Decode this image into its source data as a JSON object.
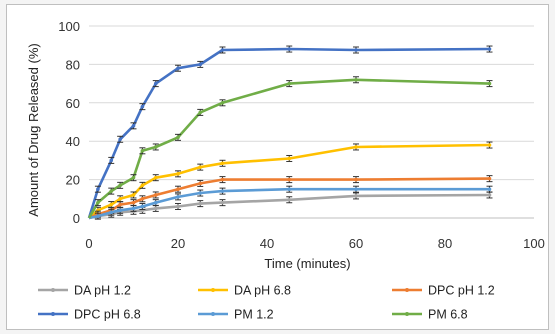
{
  "chart_data": {
    "type": "line",
    "title": "",
    "xlabel": "Time (minutes)",
    "ylabel": "Amount of Drug Released (%)",
    "xlim": [
      0,
      100
    ],
    "ylim": [
      0,
      100
    ],
    "xticks": [
      0,
      20,
      40,
      60,
      80,
      100
    ],
    "yticks": [
      0,
      20,
      40,
      60,
      80,
      100
    ],
    "grid": "horizontal",
    "legend_position": "bottom",
    "series": [
      {
        "name": "DA pH 1.2",
        "color": "#a5a5a5",
        "x": [
          0,
          2,
          5,
          7,
          10,
          12,
          15,
          20,
          25,
          30,
          45,
          60,
          90
        ],
        "y": [
          0,
          1,
          2,
          3,
          3.5,
          4,
          5,
          6,
          7.5,
          8,
          9.5,
          11.5,
          12
        ]
      },
      {
        "name": "DA pH 6.8",
        "color": "#ffc000",
        "x": [
          0,
          2,
          5,
          7,
          10,
          12,
          15,
          20,
          25,
          30,
          45,
          60,
          90
        ],
        "y": [
          0,
          4,
          7,
          10,
          12,
          17,
          21,
          23,
          26.5,
          28.5,
          31,
          37,
          38
        ]
      },
      {
        "name": "DPC pH 1.2",
        "color": "#ed7d31",
        "x": [
          0,
          2,
          5,
          7,
          10,
          12,
          15,
          20,
          25,
          30,
          45,
          60,
          90
        ],
        "y": [
          0,
          2,
          4,
          7,
          8,
          10,
          12,
          15,
          18,
          20,
          20,
          20,
          20.5
        ]
      },
      {
        "name": "DPC pH 6.8",
        "color": "#4472c4",
        "x": [
          0,
          2,
          5,
          7,
          10,
          12,
          15,
          20,
          25,
          30,
          45,
          60,
          90
        ],
        "y": [
          0,
          15,
          30,
          41,
          48,
          58,
          70,
          78,
          80,
          87.5,
          88,
          87.5,
          88
        ]
      },
      {
        "name": "PM 1.2",
        "color": "#5b9bd5",
        "x": [
          0,
          2,
          5,
          7,
          10,
          12,
          15,
          20,
          25,
          30,
          45,
          60,
          90
        ],
        "y": [
          0,
          1,
          3,
          4,
          5,
          6,
          8,
          11,
          13,
          14,
          15,
          15,
          15
        ]
      },
      {
        "name": "PM 6.8",
        "color": "#70ad47",
        "x": [
          0,
          2,
          5,
          7,
          10,
          12,
          15,
          20,
          25,
          30,
          45,
          60,
          90
        ],
        "y": [
          0,
          8,
          14,
          17,
          21,
          35,
          37,
          42,
          55,
          60,
          70,
          72,
          70
        ]
      }
    ]
  }
}
